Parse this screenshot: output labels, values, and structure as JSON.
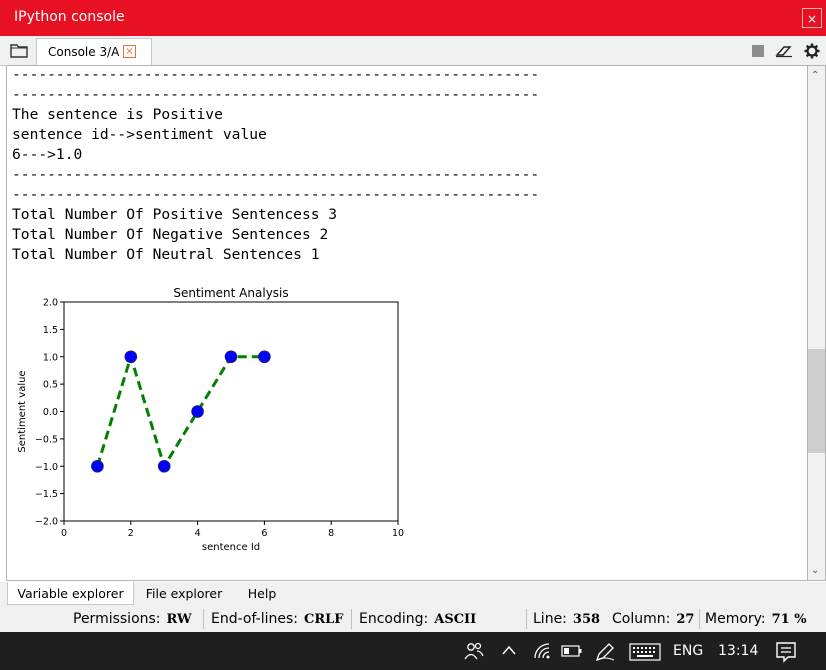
{
  "window": {
    "title": "IPython console",
    "close_glyph": "×"
  },
  "tabs": [
    {
      "label": "Console 3/A",
      "close_glyph": "×"
    }
  ],
  "console_lines": [
    "------------------------------------------------------------",
    "------------------------------------------------------------",
    "The sentence is Positive",
    "sentence id-->sentiment value",
    "6--->1.0",
    "------------------------------------------------------------",
    "------------------------------------------------------------",
    "Total Number Of Positive Sentencess 3",
    "Total Number Of Negative Sentences 2",
    "Total Number Of Neutral Sentences 1"
  ],
  "chart_data": {
    "type": "line",
    "title": "Sentiment Analysis",
    "xlabel": "sentence Id",
    "ylabel": "Sentiment value",
    "x": [
      1,
      2,
      3,
      4,
      5,
      6
    ],
    "values": [
      -1.0,
      1.0,
      -1.0,
      0.0,
      1.0,
      1.0
    ],
    "xlim": [
      0,
      10
    ],
    "ylim": [
      -2.0,
      2.0
    ],
    "xticks": [
      "0",
      "2",
      "4",
      "6",
      "8",
      "10"
    ],
    "yticks": [
      "−2.0",
      "−1.5",
      "−1.0",
      "−0.5",
      "0.0",
      "0.5",
      "1.0",
      "1.5",
      "2.0"
    ],
    "line_color": "#008000",
    "line_style": "dashed",
    "marker_color": "#0000ff",
    "grid": false
  },
  "bottom_tabs": [
    {
      "label": "Variable explorer"
    },
    {
      "label": "File explorer"
    },
    {
      "label": "Help"
    }
  ],
  "status": {
    "permissions_label": "Permissions:",
    "permissions_value": "RW",
    "eol_label": "End-of-lines:",
    "eol_value": "CRLF",
    "encoding_label": "Encoding:",
    "encoding_value": "ASCII",
    "line_label": "Line:",
    "line_value": "358",
    "column_label": "Column:",
    "column_value": "27",
    "memory_label": "Memory:",
    "memory_value": "71 %"
  },
  "taskbar": {
    "language": "ENG",
    "time": "13:14"
  },
  "colors": {
    "titlebar": "#e81123",
    "taskbar": "#1f1f1f",
    "accent_orange": "#e8703a"
  }
}
